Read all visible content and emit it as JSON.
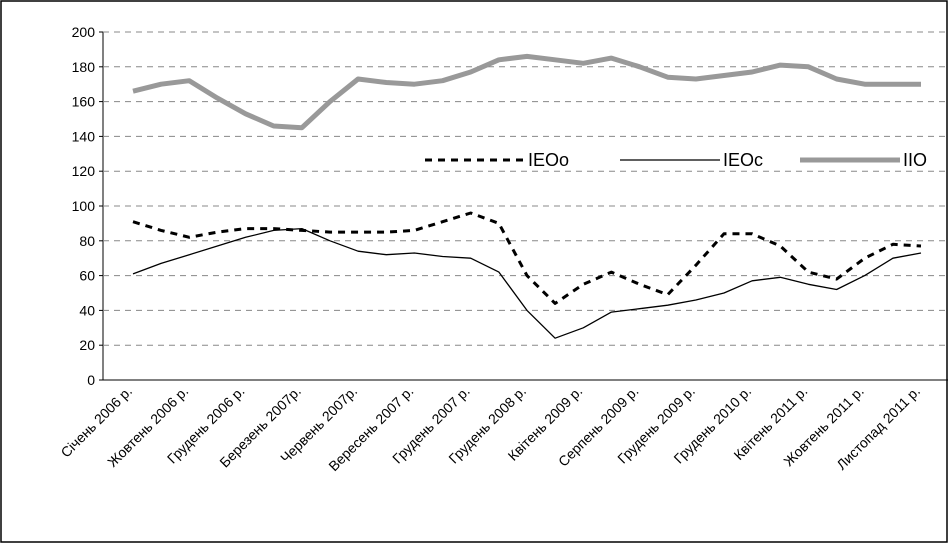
{
  "chart_data": {
    "type": "line",
    "categories": [
      "Січень 2006 р.",
      null,
      "Жовтень 2006 р.",
      null,
      "Грудень 2006 р.",
      null,
      "Березень 2007р.",
      null,
      "Червень 2007р.",
      null,
      "Вересень 2007 р.",
      null,
      "Грудень 2007 р.",
      null,
      "Грудень 2008 р.",
      null,
      "Квітень 2009 р.",
      null,
      "Серпень 2009 р.",
      null,
      "Грудень 2009 р.",
      null,
      "Грудень 2010 р.",
      null,
      "Квітень 2011 р.",
      null,
      "Жовтень 2011 р.",
      null,
      "Листопад 2011 р."
    ],
    "series": [
      {
        "name": "IEOo",
        "color": "#000000",
        "dash": true,
        "width": 3,
        "values": [
          91,
          86,
          82,
          85,
          87,
          87,
          86,
          85,
          85,
          85,
          86,
          91,
          96,
          90,
          60,
          44,
          55,
          62,
          55,
          49,
          66,
          84,
          84,
          77,
          62,
          58,
          70,
          78,
          77
        ]
      },
      {
        "name": "IEOc",
        "color": "#000000",
        "dash": false,
        "width": 1.3,
        "values": [
          61,
          67,
          72,
          77,
          82,
          86,
          87,
          80,
          74,
          72,
          73,
          71,
          70,
          62,
          40,
          24,
          30,
          39,
          41,
          43,
          46,
          50,
          57,
          59,
          55,
          52,
          60,
          70,
          73
        ]
      },
      {
        "name": "IIO",
        "color": "#999999",
        "dash": false,
        "width": 5,
        "values": [
          166,
          170,
          172,
          162,
          153,
          146,
          145,
          160,
          173,
          171,
          170,
          172,
          177,
          184,
          186,
          184,
          182,
          185,
          180,
          174,
          173,
          175,
          177,
          181,
          180,
          173,
          170,
          170,
          170
        ]
      }
    ],
    "ylim": [
      0,
      200
    ],
    "yticks": [
      0,
      20,
      40,
      60,
      80,
      100,
      120,
      140,
      160,
      180,
      200
    ],
    "grid": true
  }
}
